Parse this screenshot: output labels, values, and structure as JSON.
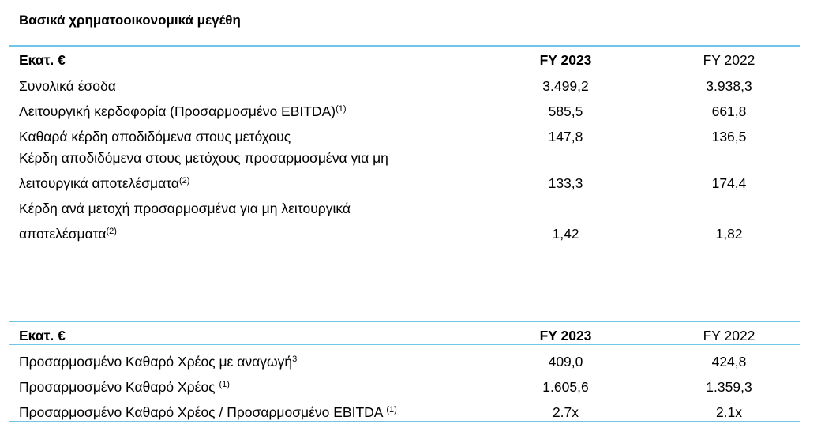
{
  "title": "Βασικά χρηματοοικονομικά μεγέθη",
  "table1": {
    "header": {
      "label": "Εκατ. €",
      "fy2023": "FY 2023",
      "fy2022": "FY 2022"
    },
    "rows": [
      {
        "label": "Συνολικά έσοδα",
        "sup": "",
        "fy2023": "3.499,2",
        "fy2022": "3.938,3"
      },
      {
        "label": "Λειτουργική κερδοφορία (Προσαρμοσμένο EBITDA)",
        "sup": "(1)",
        "fy2023": "585,5",
        "fy2022": "661,8"
      },
      {
        "label": "Καθαρά κέρδη αποδιδόμενα στους μετόχους",
        "sup": "",
        "fy2023": "147,8",
        "fy2022": "136,5"
      },
      {
        "label_line1": "Κέρδη αποδιδόμενα στους μετόχους προσαρμοσμένα για μη",
        "label_line2": "λειτουργικά αποτελέσματα",
        "sup": "(2)",
        "fy2023": "133,3",
        "fy2022": "174,4"
      },
      {
        "label_line1": "Κέρδη ανά μετοχή προσαρμοσμένα για μη λειτουργικά",
        "label_line2": "αποτελέσματα",
        "sup": "(2)",
        "fy2023": "1,42",
        "fy2022": "1,82"
      }
    ]
  },
  "table2": {
    "header": {
      "label": "Εκατ. €",
      "fy2023": "FY 2023",
      "fy2022": "FY 2022"
    },
    "rows": [
      {
        "label": "Προσαρμοσμένο Καθαρό Χρέος με αναγωγή",
        "sup": "3",
        "fy2023": "409,0",
        "fy2022": "424,8"
      },
      {
        "label": "Προσαρμοσμένο Καθαρό Χρέος ",
        "sup": "(1)",
        "fy2023": "1.605,6",
        "fy2022": "1.359,3"
      },
      {
        "label": "Προσαρμοσμένο Καθαρό Χρέος / Προσαρμοσμένο EBITDA ",
        "sup": "(1)",
        "fy2023": "2.7x",
        "fy2022": "2.1x"
      }
    ]
  },
  "colors": {
    "rule": "#6fc6e6"
  }
}
